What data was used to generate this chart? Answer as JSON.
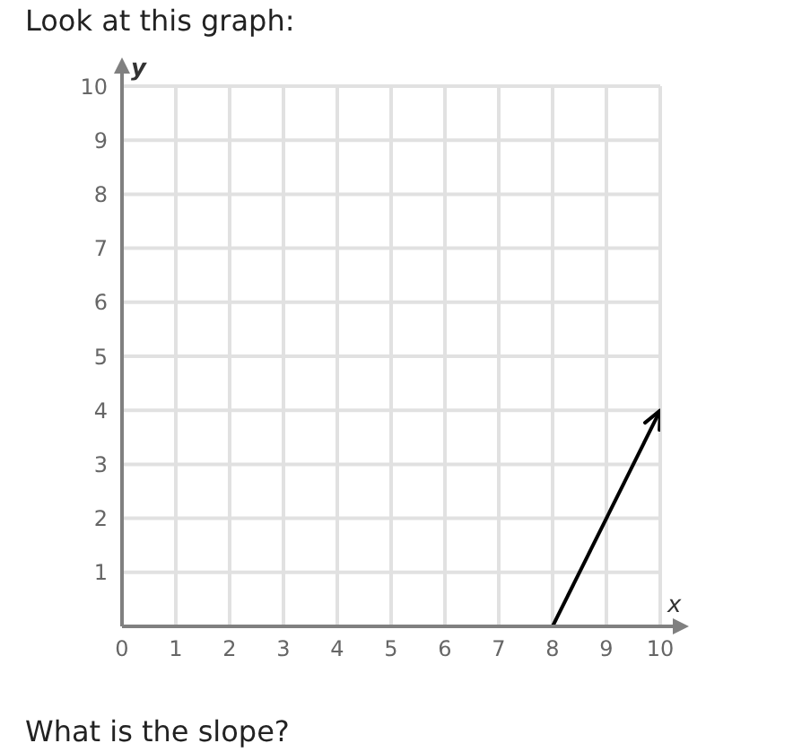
{
  "chart_data": {
    "type": "line",
    "title": "Look at this graph:",
    "xlabel": "x",
    "ylabel": "y",
    "x": [
      8,
      10
    ],
    "series": [
      {
        "color": "#000000",
        "values": [
          0,
          4
        ]
      }
    ],
    "xlim": [
      0,
      10
    ],
    "ylim": [
      0,
      10
    ],
    "xticks": [
      0,
      1,
      2,
      3,
      4,
      5,
      6,
      7,
      8,
      9,
      10
    ],
    "yticks": [
      1,
      2,
      3,
      4,
      5,
      6,
      7,
      8,
      9,
      10
    ],
    "grid": true,
    "marker": "none",
    "line_style": "solid",
    "annotations": [
      "What is the slope?"
    ]
  }
}
